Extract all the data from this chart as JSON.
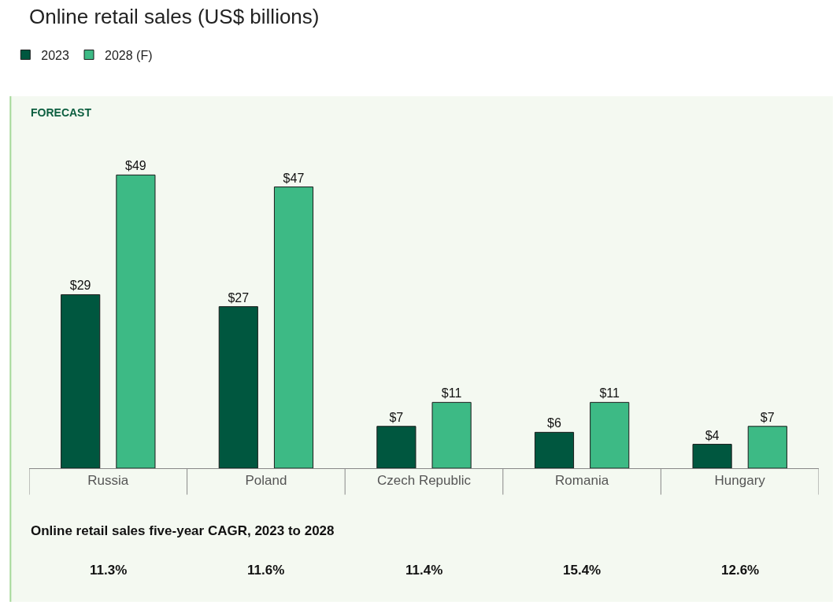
{
  "chart_data": {
    "type": "bar",
    "title": "Online retail sales (US$ billions)",
    "categories": [
      "Russia",
      "Poland",
      "Czech Republic",
      "Romania",
      "Hungary"
    ],
    "series": [
      {
        "name": "2023",
        "color": "#00573f",
        "values": [
          29,
          27,
          7,
          6,
          4
        ],
        "value_labels": [
          "$29",
          "$27",
          "$7",
          "$6",
          "$4"
        ]
      },
      {
        "name": "2028 (F)",
        "color": "#3dba85",
        "values": [
          49,
          47,
          11,
          11,
          7
        ],
        "value_labels": [
          "$49",
          "$47",
          "$11",
          "$11",
          "$7"
        ]
      }
    ],
    "annotations": [
      "FORECAST",
      "Online retail sales five-year CAGR, 2023 to 2028",
      "11.3%",
      "11.6%",
      "11.4%",
      "15.4%",
      "12.6%"
    ],
    "legend": "top left",
    "grid": false
  }
}
